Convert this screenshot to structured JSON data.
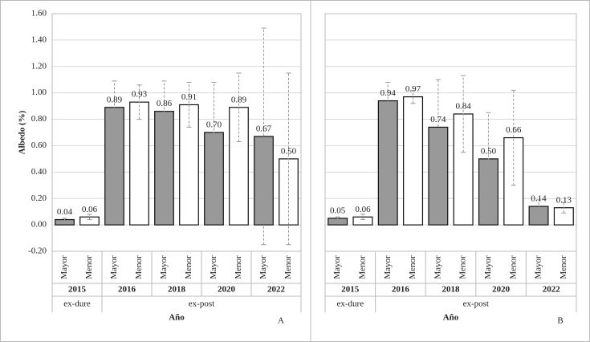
{
  "chart_data": [
    {
      "type": "bar",
      "panel": "A",
      "ylabel": "Albedo (%)",
      "xlabel": "Año",
      "ylim": [
        -0.2,
        1.6
      ],
      "yticks": [
        {
          "value": -0.2,
          "label": "-0.20"
        },
        {
          "value": 0,
          "label": "0.00"
        },
        {
          "value": 0.2,
          "label": "0.20"
        },
        {
          "value": 0.4,
          "label": "0.40"
        },
        {
          "value": 0.6,
          "label": "0.60"
        },
        {
          "value": 0.8,
          "label": "0.80"
        },
        {
          "value": 1.0,
          "label": "1.00"
        },
        {
          "value": 1.2,
          "label": "1.20"
        },
        {
          "value": 1.4,
          "label": "1.40"
        },
        {
          "value": 1.6,
          "label": "1.60"
        }
      ],
      "grid": true,
      "periods": [
        {
          "label": "ex-dure",
          "groups": [
            {
              "label": "2015",
              "bars": [
                {
                  "category": "Mayor",
                  "value": 0.04,
                  "value_label": "0.04",
                  "error": 0.01,
                  "color": "#999999"
                },
                {
                  "category": "Menor",
                  "value": 0.06,
                  "value_label": "0.06",
                  "error": 0.02,
                  "color": "#ffffff"
                }
              ]
            }
          ]
        },
        {
          "label": "ex-post",
          "groups": [
            {
              "label": "2016",
              "bars": [
                {
                  "category": "Mayor",
                  "value": 0.89,
                  "value_label": "0.89",
                  "error": 0.2,
                  "color": "#999999"
                },
                {
                  "category": "Menor",
                  "value": 0.93,
                  "value_label": "0.93",
                  "error": 0.13,
                  "color": "#ffffff"
                }
              ]
            },
            {
              "label": "2018",
              "bars": [
                {
                  "category": "Mayor",
                  "value": 0.86,
                  "value_label": "0.86",
                  "error": 0.23,
                  "color": "#999999"
                },
                {
                  "category": "Menor",
                  "value": 0.91,
                  "value_label": "0.91",
                  "error": 0.17,
                  "color": "#ffffff"
                }
              ]
            },
            {
              "label": "2020",
              "bars": [
                {
                  "category": "Mayor",
                  "value": 0.7,
                  "value_label": "0.70",
                  "error": 0.38,
                  "color": "#999999"
                },
                {
                  "category": "Menor",
                  "value": 0.89,
                  "value_label": "0.89",
                  "error": 0.26,
                  "color": "#ffffff"
                }
              ]
            },
            {
              "label": "2022",
              "bars": [
                {
                  "category": "Mayor",
                  "value": 0.67,
                  "value_label": "0.67",
                  "error": 0.82,
                  "color": "#999999"
                },
                {
                  "category": "Menor",
                  "value": 0.5,
                  "value_label": "0.50",
                  "error": 0.65,
                  "color": "#ffffff"
                }
              ]
            }
          ]
        }
      ]
    },
    {
      "type": "bar",
      "panel": "B",
      "xlabel": "Año",
      "ylim": [
        -0.2,
        1.6
      ],
      "yticks": [
        -0.2,
        0,
        0.2,
        0.4,
        0.6,
        0.8,
        1.0,
        1.2,
        1.4,
        1.6
      ],
      "grid": true,
      "periods": [
        {
          "label": "ex-dure",
          "groups": [
            {
              "label": "2015",
              "bars": [
                {
                  "category": "Mayor",
                  "value": 0.05,
                  "value_label": "0.05",
                  "error": 0.01,
                  "color": "#999999"
                },
                {
                  "category": "Menor",
                  "value": 0.06,
                  "value_label": "0.06",
                  "error": 0.02,
                  "color": "#ffffff"
                }
              ]
            }
          ]
        },
        {
          "label": "ex-post",
          "groups": [
            {
              "label": "2016",
              "bars": [
                {
                  "category": "Mayor",
                  "value": 0.94,
                  "value_label": "0.94",
                  "error": 0.14,
                  "color": "#999999"
                },
                {
                  "category": "Menor",
                  "value": 0.97,
                  "value_label": "0.97",
                  "error": 0.05,
                  "color": "#ffffff"
                }
              ]
            },
            {
              "label": "2018",
              "bars": [
                {
                  "category": "Mayor",
                  "value": 0.74,
                  "value_label": "0.74",
                  "error": 0.36,
                  "color": "#999999"
                },
                {
                  "category": "Menor",
                  "value": 0.84,
                  "value_label": "0.84",
                  "error": 0.29,
                  "color": "#ffffff"
                }
              ]
            },
            {
              "label": "2020",
              "bars": [
                {
                  "category": "Mayor",
                  "value": 0.5,
                  "value_label": "0.50",
                  "error": 0.35,
                  "color": "#999999"
                },
                {
                  "category": "Menor",
                  "value": 0.66,
                  "value_label": "0.66",
                  "error": 0.36,
                  "color": "#ffffff"
                }
              ]
            },
            {
              "label": "2022",
              "bars": [
                {
                  "category": "Mayor",
                  "value": 0.14,
                  "value_label": "0.14",
                  "error": 0.05,
                  "color": "#999999"
                },
                {
                  "category": "Menor",
                  "value": 0.13,
                  "value_label": "0.13",
                  "error": 0.04,
                  "color": "#ffffff"
                }
              ]
            }
          ]
        }
      ]
    }
  ]
}
